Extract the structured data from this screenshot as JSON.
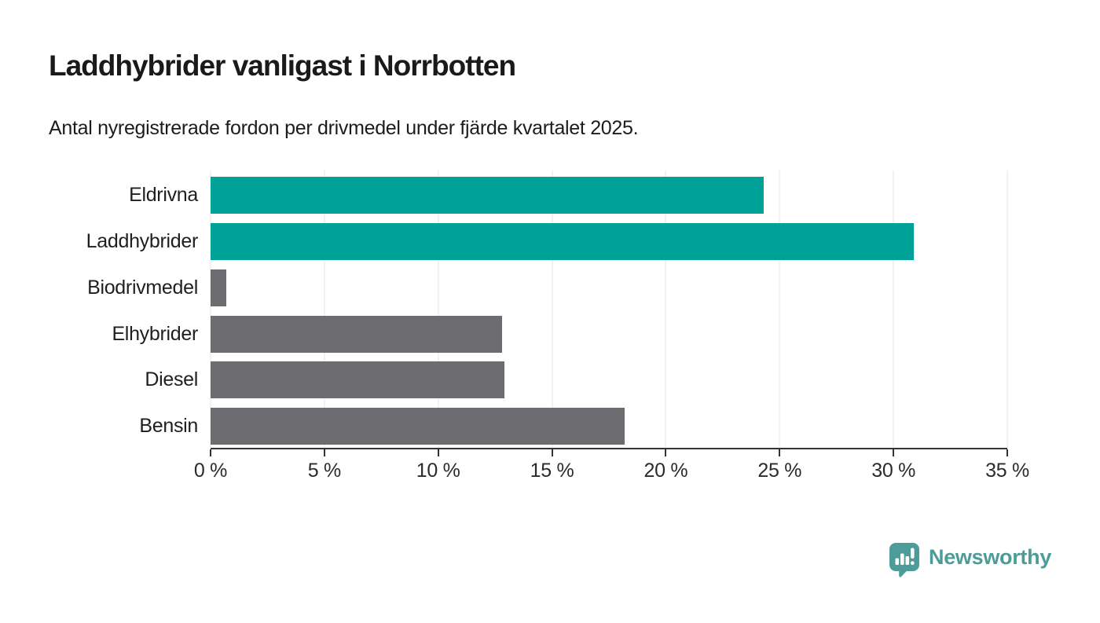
{
  "header": {
    "title": "Laddhybrider vanligast i Norrbotten",
    "subtitle": "Antal nyregistrerade fordon per drivmedel under fjärde kvartalet 2025."
  },
  "chart_data": {
    "type": "bar",
    "orientation": "horizontal",
    "title": "Laddhybrider vanligast i Norrbotten",
    "subtitle": "Antal nyregistrerade fordon per drivmedel under fjärde kvartalet 2025.",
    "categories": [
      "Eldrivna",
      "Laddhybrider",
      "Biodrivmedel",
      "Elhybrider",
      "Diesel",
      "Bensin"
    ],
    "values": [
      24.3,
      30.9,
      0.7,
      12.8,
      12.9,
      18.2
    ],
    "bar_colors": [
      "#00a298",
      "#00a298",
      "#6c6c71",
      "#6c6c71",
      "#6c6c71",
      "#6c6c71"
    ],
    "highlight_color": "#00a298",
    "default_color": "#6c6c71",
    "xlabel": "",
    "ylabel": "",
    "xlim": [
      0,
      35
    ],
    "x_ticks": [
      0,
      5,
      10,
      15,
      20,
      25,
      30,
      35
    ],
    "x_tick_labels": [
      "0 %",
      "5 %",
      "10 %",
      "15 %",
      "20 %",
      "25 %",
      "30 %",
      "35 %"
    ],
    "grid": "vertical-light-gray",
    "legend": "none",
    "axis_color": "#333333",
    "gridline_color": "#e4e4e4"
  },
  "footer": {
    "brand": "Newsworthy",
    "brand_color": "#4d9c99",
    "logo_icon": "newsworthy-pin-bar-chart-icon"
  }
}
